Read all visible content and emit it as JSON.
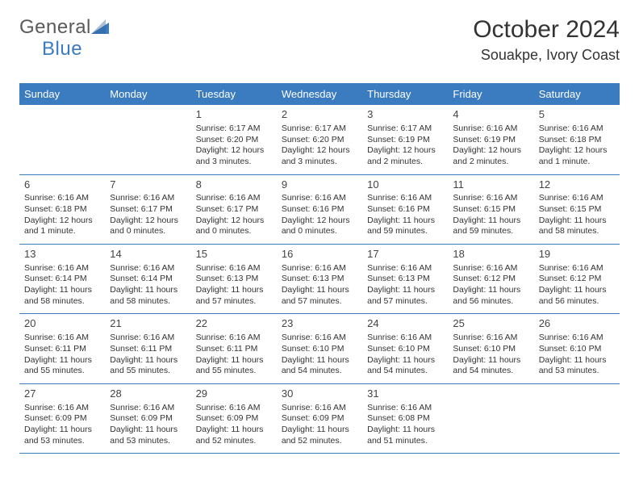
{
  "logo": {
    "text1": "General",
    "text2": "Blue",
    "text_color1": "#5a5a5a",
    "text_color2": "#3b7bbf",
    "triangle_color": "#3b7bbf"
  },
  "title": "October 2024",
  "location": "Souakpe, Ivory Coast",
  "colors": {
    "header_bg": "#3b7bbf",
    "header_text": "#ffffff",
    "border": "#3b7bbf",
    "cell_text": "#333333",
    "background": "#ffffff"
  },
  "day_headers": [
    "Sunday",
    "Monday",
    "Tuesday",
    "Wednesday",
    "Thursday",
    "Friday",
    "Saturday"
  ],
  "weeks": [
    [
      null,
      null,
      {
        "n": "1",
        "sr": "Sunrise: 6:17 AM",
        "ss": "Sunset: 6:20 PM",
        "dl": "Daylight: 12 hours and 3 minutes."
      },
      {
        "n": "2",
        "sr": "Sunrise: 6:17 AM",
        "ss": "Sunset: 6:20 PM",
        "dl": "Daylight: 12 hours and 3 minutes."
      },
      {
        "n": "3",
        "sr": "Sunrise: 6:17 AM",
        "ss": "Sunset: 6:19 PM",
        "dl": "Daylight: 12 hours and 2 minutes."
      },
      {
        "n": "4",
        "sr": "Sunrise: 6:16 AM",
        "ss": "Sunset: 6:19 PM",
        "dl": "Daylight: 12 hours and 2 minutes."
      },
      {
        "n": "5",
        "sr": "Sunrise: 6:16 AM",
        "ss": "Sunset: 6:18 PM",
        "dl": "Daylight: 12 hours and 1 minute."
      }
    ],
    [
      {
        "n": "6",
        "sr": "Sunrise: 6:16 AM",
        "ss": "Sunset: 6:18 PM",
        "dl": "Daylight: 12 hours and 1 minute."
      },
      {
        "n": "7",
        "sr": "Sunrise: 6:16 AM",
        "ss": "Sunset: 6:17 PM",
        "dl": "Daylight: 12 hours and 0 minutes."
      },
      {
        "n": "8",
        "sr": "Sunrise: 6:16 AM",
        "ss": "Sunset: 6:17 PM",
        "dl": "Daylight: 12 hours and 0 minutes."
      },
      {
        "n": "9",
        "sr": "Sunrise: 6:16 AM",
        "ss": "Sunset: 6:16 PM",
        "dl": "Daylight: 12 hours and 0 minutes."
      },
      {
        "n": "10",
        "sr": "Sunrise: 6:16 AM",
        "ss": "Sunset: 6:16 PM",
        "dl": "Daylight: 11 hours and 59 minutes."
      },
      {
        "n": "11",
        "sr": "Sunrise: 6:16 AM",
        "ss": "Sunset: 6:15 PM",
        "dl": "Daylight: 11 hours and 59 minutes."
      },
      {
        "n": "12",
        "sr": "Sunrise: 6:16 AM",
        "ss": "Sunset: 6:15 PM",
        "dl": "Daylight: 11 hours and 58 minutes."
      }
    ],
    [
      {
        "n": "13",
        "sr": "Sunrise: 6:16 AM",
        "ss": "Sunset: 6:14 PM",
        "dl": "Daylight: 11 hours and 58 minutes."
      },
      {
        "n": "14",
        "sr": "Sunrise: 6:16 AM",
        "ss": "Sunset: 6:14 PM",
        "dl": "Daylight: 11 hours and 58 minutes."
      },
      {
        "n": "15",
        "sr": "Sunrise: 6:16 AM",
        "ss": "Sunset: 6:13 PM",
        "dl": "Daylight: 11 hours and 57 minutes."
      },
      {
        "n": "16",
        "sr": "Sunrise: 6:16 AM",
        "ss": "Sunset: 6:13 PM",
        "dl": "Daylight: 11 hours and 57 minutes."
      },
      {
        "n": "17",
        "sr": "Sunrise: 6:16 AM",
        "ss": "Sunset: 6:13 PM",
        "dl": "Daylight: 11 hours and 57 minutes."
      },
      {
        "n": "18",
        "sr": "Sunrise: 6:16 AM",
        "ss": "Sunset: 6:12 PM",
        "dl": "Daylight: 11 hours and 56 minutes."
      },
      {
        "n": "19",
        "sr": "Sunrise: 6:16 AM",
        "ss": "Sunset: 6:12 PM",
        "dl": "Daylight: 11 hours and 56 minutes."
      }
    ],
    [
      {
        "n": "20",
        "sr": "Sunrise: 6:16 AM",
        "ss": "Sunset: 6:11 PM",
        "dl": "Daylight: 11 hours and 55 minutes."
      },
      {
        "n": "21",
        "sr": "Sunrise: 6:16 AM",
        "ss": "Sunset: 6:11 PM",
        "dl": "Daylight: 11 hours and 55 minutes."
      },
      {
        "n": "22",
        "sr": "Sunrise: 6:16 AM",
        "ss": "Sunset: 6:11 PM",
        "dl": "Daylight: 11 hours and 55 minutes."
      },
      {
        "n": "23",
        "sr": "Sunrise: 6:16 AM",
        "ss": "Sunset: 6:10 PM",
        "dl": "Daylight: 11 hours and 54 minutes."
      },
      {
        "n": "24",
        "sr": "Sunrise: 6:16 AM",
        "ss": "Sunset: 6:10 PM",
        "dl": "Daylight: 11 hours and 54 minutes."
      },
      {
        "n": "25",
        "sr": "Sunrise: 6:16 AM",
        "ss": "Sunset: 6:10 PM",
        "dl": "Daylight: 11 hours and 54 minutes."
      },
      {
        "n": "26",
        "sr": "Sunrise: 6:16 AM",
        "ss": "Sunset: 6:10 PM",
        "dl": "Daylight: 11 hours and 53 minutes."
      }
    ],
    [
      {
        "n": "27",
        "sr": "Sunrise: 6:16 AM",
        "ss": "Sunset: 6:09 PM",
        "dl": "Daylight: 11 hours and 53 minutes."
      },
      {
        "n": "28",
        "sr": "Sunrise: 6:16 AM",
        "ss": "Sunset: 6:09 PM",
        "dl": "Daylight: 11 hours and 53 minutes."
      },
      {
        "n": "29",
        "sr": "Sunrise: 6:16 AM",
        "ss": "Sunset: 6:09 PM",
        "dl": "Daylight: 11 hours and 52 minutes."
      },
      {
        "n": "30",
        "sr": "Sunrise: 6:16 AM",
        "ss": "Sunset: 6:09 PM",
        "dl": "Daylight: 11 hours and 52 minutes."
      },
      {
        "n": "31",
        "sr": "Sunrise: 6:16 AM",
        "ss": "Sunset: 6:08 PM",
        "dl": "Daylight: 11 hours and 51 minutes."
      },
      null,
      null
    ]
  ]
}
